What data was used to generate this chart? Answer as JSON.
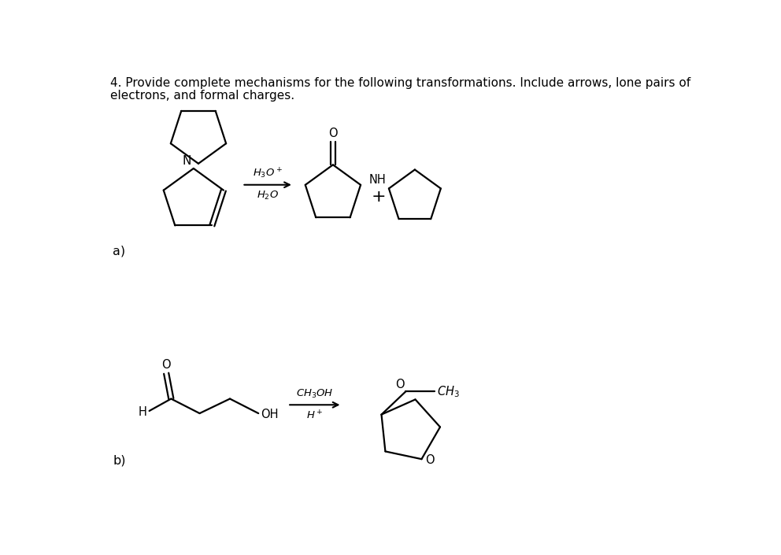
{
  "title_line1": "4. Provide complete mechanisms for the following transformations. Include arrows, lone pairs of",
  "title_line2": "electrons, and formal charges.",
  "label_a": "a)",
  "label_b": "b)",
  "background_color": "#ffffff",
  "text_color": "#000000",
  "line_color": "#000000",
  "line_width": 1.6,
  "font_size_title": 11.0,
  "font_size_label": 11.5,
  "font_size_chem": 10.5,
  "font_size_atom": 10.5
}
